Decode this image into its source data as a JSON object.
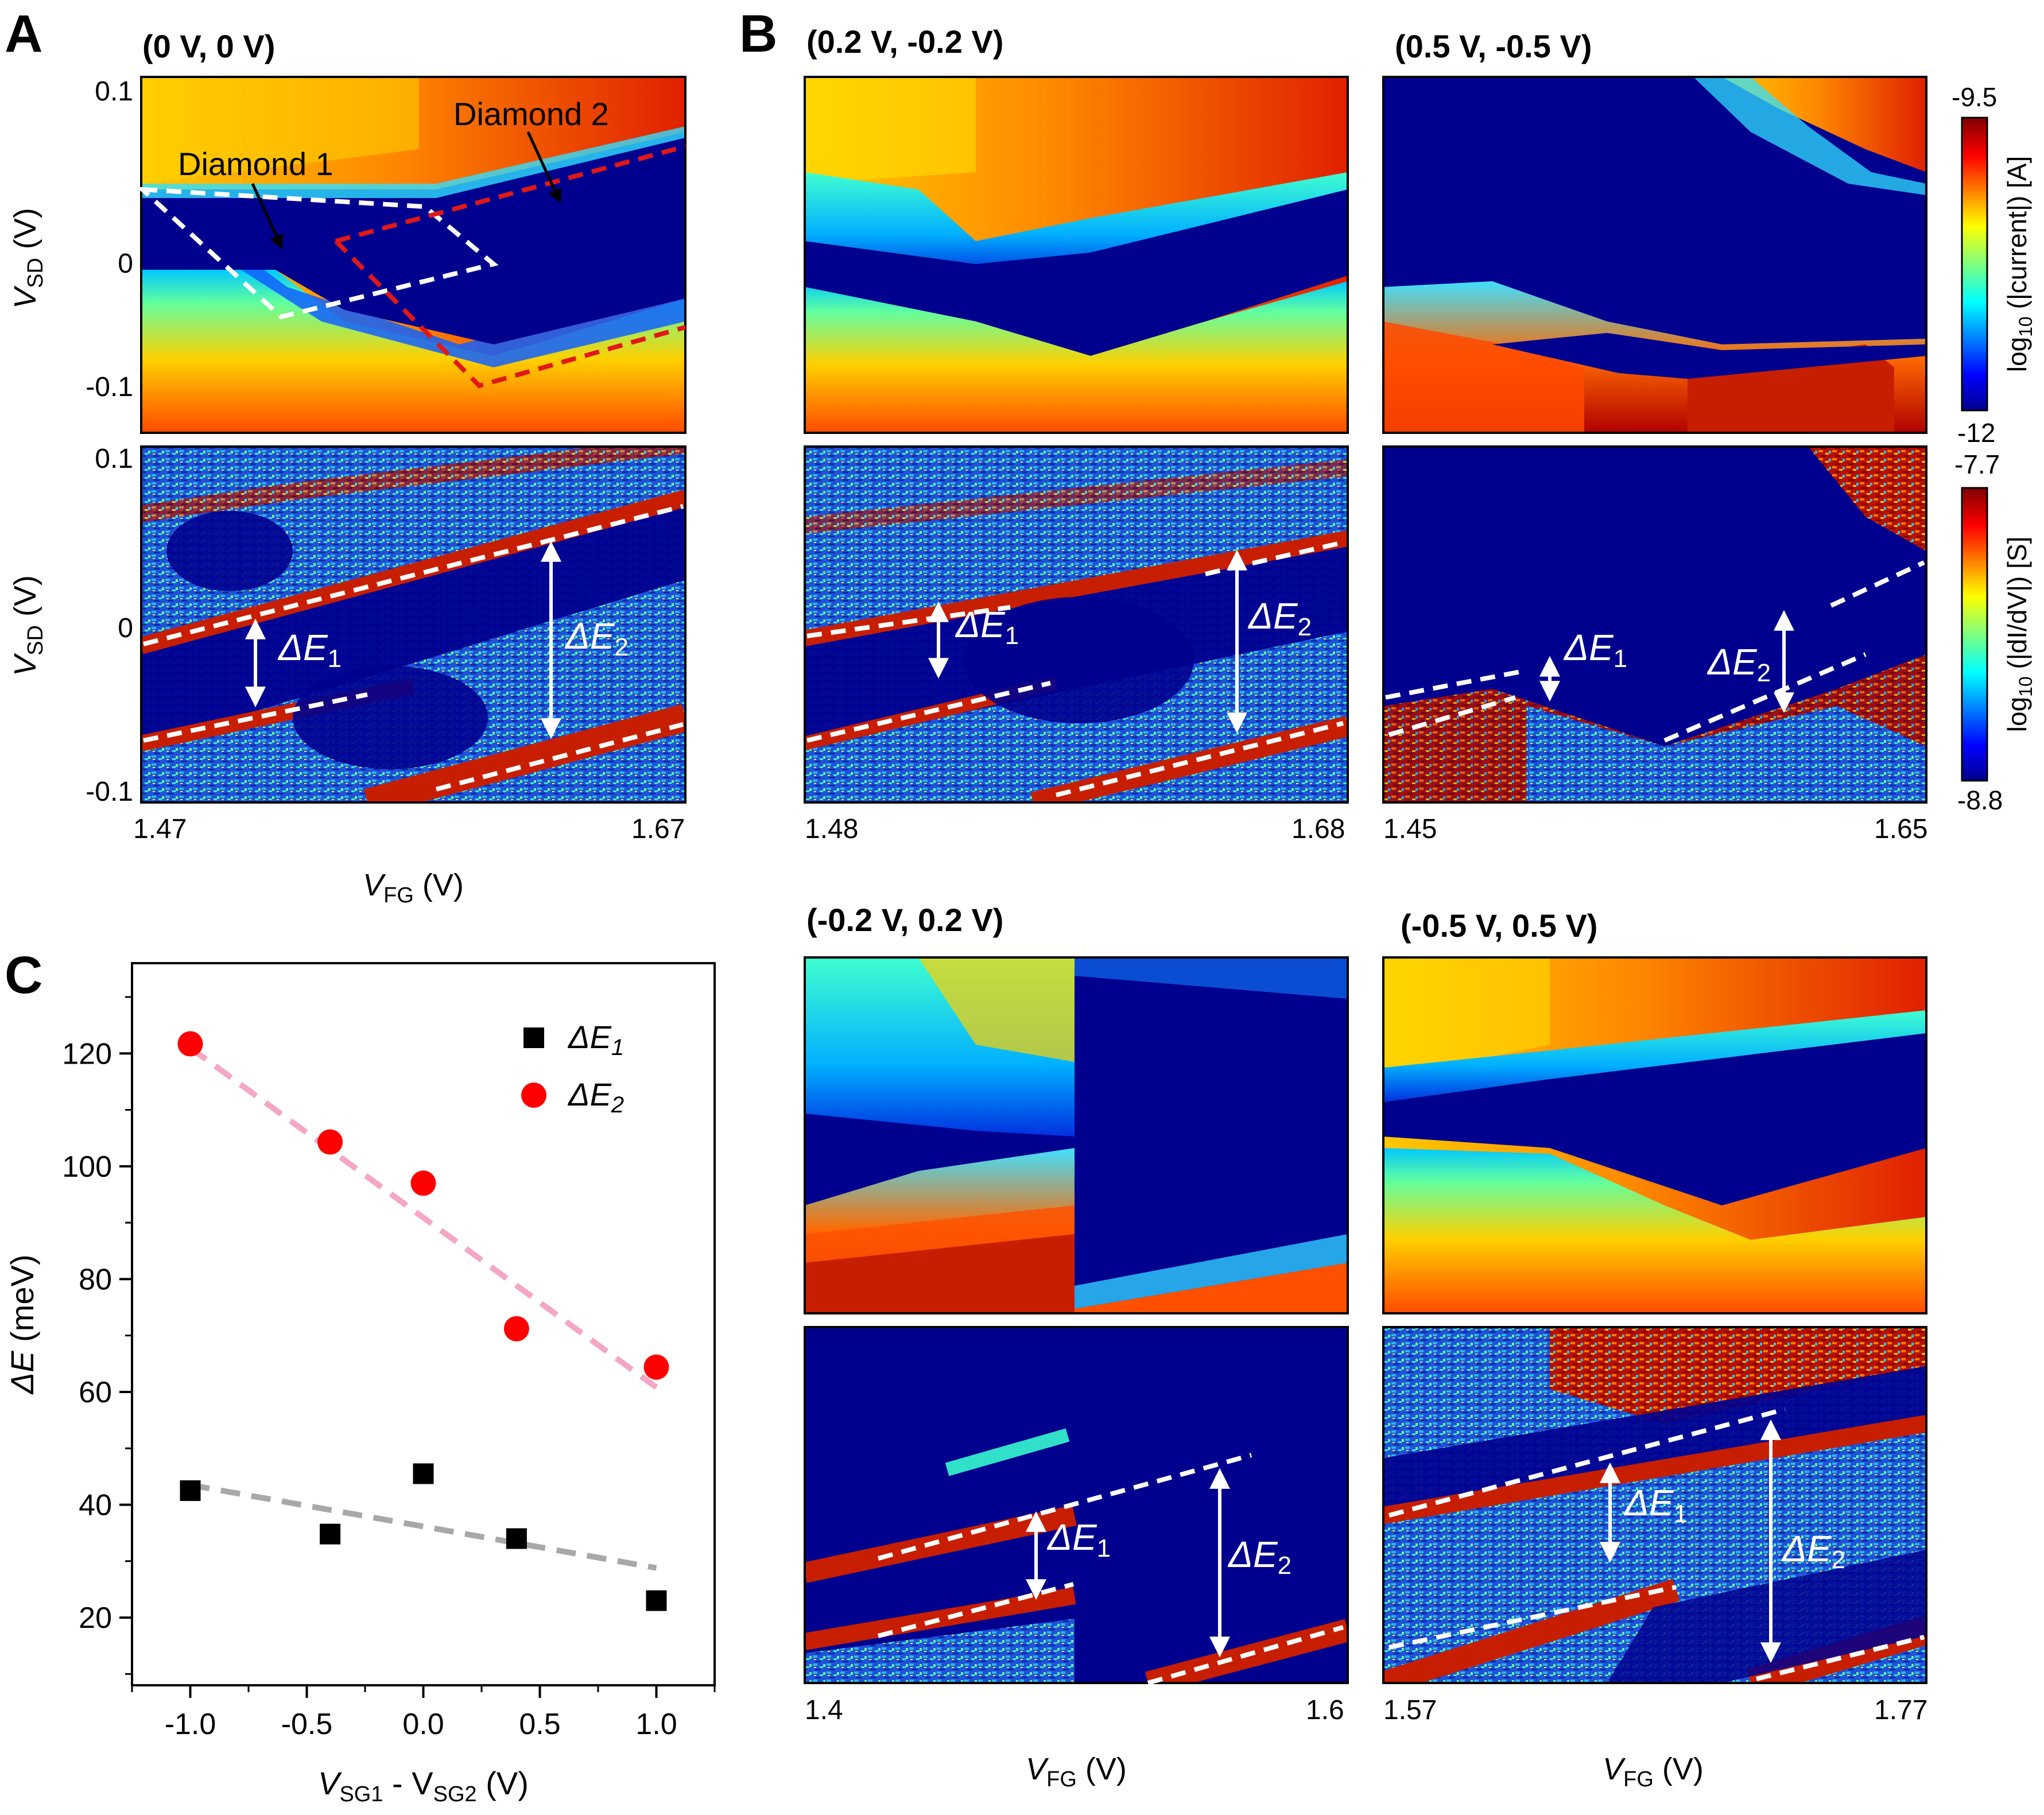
{
  "panels": {
    "A": {
      "letter": "A",
      "title": "(0 V, 0 V)",
      "xtick_left": "1.47",
      "xtick_right": "1.67",
      "ytick_top": "0.1",
      "ytick_mid": "0",
      "ytick_bottom": "-0.1",
      "ytick2_top": "0.1",
      "ytick2_mid": "0",
      "ytick2_bottom": "-0.1",
      "ylabel_v": "V",
      "ylabel_sub": "SD",
      "ylabel_unit": " (V)",
      "xlabel_v": "V",
      "xlabel_sub": "FG",
      "xlabel_unit": " (V)",
      "annot_d1": "Diamond 1",
      "annot_d2": "Diamond 2",
      "de1_delta": "ΔE",
      "de1_sub": "1",
      "de2_delta": "ΔE",
      "de2_sub": "2"
    },
    "B1": {
      "letter": "B",
      "title": "(0.2 V, -0.2 V)",
      "xtick_left": "1.48",
      "xtick_right": "1.68",
      "de1_delta": "ΔE",
      "de1_sub": "1",
      "de2_delta": "ΔE",
      "de2_sub": "2"
    },
    "B2": {
      "title": "(0.5 V, -0.5 V)",
      "xtick_left": "1.45",
      "xtick_right": "1.65",
      "de1_delta": "ΔE",
      "de1_sub": "1",
      "de2_delta": "ΔE",
      "de2_sub": "2"
    },
    "B3": {
      "title": "(-0.2 V, 0.2 V)",
      "xtick_left": "1.4",
      "xtick_right": "1.6",
      "xlabel_v": "V",
      "xlabel_sub": "FG",
      "xlabel_unit": " (V)",
      "de1_delta": "ΔE",
      "de1_sub": "1",
      "de2_delta": "ΔE",
      "de2_sub": "2"
    },
    "B4": {
      "title": "(-0.5 V, 0.5 V)",
      "xtick_left": "1.57",
      "xtick_right": "1.77",
      "xlabel_v": "V",
      "xlabel_sub": "FG",
      "xlabel_unit": " (V)",
      "de1_delta": "ΔE",
      "de1_sub": "1",
      "de2_delta": "ΔE",
      "de2_sub": "2"
    }
  },
  "colorbars": {
    "current": {
      "top": "-9.5",
      "bottom": "-12",
      "label_pre": "log",
      "label_sub": "10",
      "label_post": " (|current|) [A]"
    },
    "conductance": {
      "top": "-7.7",
      "bottom": "-8.8",
      "label_pre": "log",
      "label_sub": "10",
      "label_post": " (|dI/dV|) [S]"
    }
  },
  "panelC": {
    "letter": "C"
  },
  "colors": {
    "accent_red": "#ff0000",
    "fit_pink": "#f4a6c4",
    "fit_gray": "#a8a8a8",
    "map_dark_blue": "#00008b",
    "map_red": "#c81e00"
  },
  "chart_data": {
    "type": "scatter",
    "title": "",
    "xlabel": "V_SG1 - V_SG2 (V)",
    "ylabel": "ΔE (meV)",
    "xlabel_parts": {
      "v": "V",
      "sub1": "SG1",
      "mid": " - V",
      "sub2": "SG2",
      "unit": " (V)"
    },
    "ylabel_parts": {
      "delta": "ΔE",
      "unit": " (meV)"
    },
    "xlim": [
      -1.25,
      1.25
    ],
    "ylim": [
      8,
      136
    ],
    "xticks": [
      -1.0,
      -0.5,
      0.0,
      0.5,
      1.0
    ],
    "xtick_labels": [
      "-1.0",
      "-0.5",
      "0.0",
      "0.5",
      "1.0"
    ],
    "yticks": [
      20,
      40,
      60,
      80,
      100,
      120
    ],
    "ytick_labels": [
      "20",
      "40",
      "60",
      "80",
      "100",
      "120"
    ],
    "legend": "top-right",
    "series": [
      {
        "name": "ΔE1",
        "label_delta": "ΔE",
        "label_sub": "1",
        "marker": "square",
        "color": "#000000",
        "x": [
          -1.0,
          -0.4,
          0.0,
          0.4,
          1.0
        ],
        "y": [
          42.5,
          34.8,
          45.5,
          34.0,
          23.0
        ],
        "fit": {
          "x": [
            -1.0,
            1.0
          ],
          "y": [
            43.5,
            28.8
          ],
          "color": "#a8a8a8"
        }
      },
      {
        "name": "ΔE2",
        "label_delta": "ΔE",
        "label_sub": "2",
        "marker": "circle",
        "color": "#ff0000",
        "x": [
          -1.0,
          -0.4,
          0.0,
          0.4,
          1.0
        ],
        "y": [
          121.7,
          104.3,
          97.0,
          71.2,
          64.4
        ],
        "fit": {
          "x": [
            -1.0,
            1.0
          ],
          "y": [
            121.0,
            60.8
          ],
          "color": "#f4a6c4"
        }
      }
    ]
  }
}
